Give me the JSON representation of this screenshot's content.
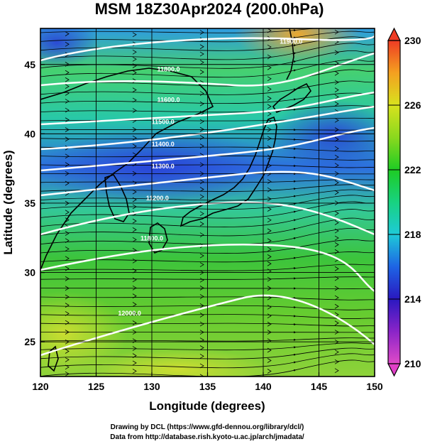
{
  "chart_data": {
    "type": "heatmap",
    "title": "MSM 18Z30Apr2024 (200.0hPa)",
    "xlabel": "Longitude (degrees)",
    "ylabel": "Latitude  (degrees)",
    "xlim": [
      120,
      150
    ],
    "ylim": [
      22.5,
      47.6
    ],
    "xticks": [
      120,
      125,
      130,
      135,
      140,
      145,
      150
    ],
    "yticks": [
      25,
      30,
      35,
      40,
      45
    ],
    "grid": true,
    "colorbar": {
      "min": 210,
      "max": 230,
      "ticks": [
        210,
        214,
        218,
        222,
        226,
        230
      ],
      "placement": "right"
    },
    "contour_labels": [
      {
        "text": "11900.0",
        "lon": 142.5,
        "lat": 46.5
      },
      {
        "text": "11800.0",
        "lon": 131.5,
        "lat": 44.5
      },
      {
        "text": "11600.0",
        "lon": 131.5,
        "lat": 42.3
      },
      {
        "text": "11500.0",
        "lon": 131.0,
        "lat": 40.7
      },
      {
        "text": "11400.0",
        "lon": 131.0,
        "lat": 39.1
      },
      {
        "text": "11300.0",
        "lon": 131.0,
        "lat": 37.5
      },
      {
        "text": "11200.0",
        "lon": 130.5,
        "lat": 35.2
      },
      {
        "text": "11800.0",
        "lon": 130.0,
        "lat": 32.3
      },
      {
        "text": "12000.0",
        "lon": 128.0,
        "lat": 26.9
      }
    ]
  },
  "credits": {
    "line1": "Drawing by DCL (https://www.gfd-dennou.org/library/dcl/)",
    "line2": "Data from http://database.rish.kyoto-u.ac.jp/arch/jmadata/"
  }
}
